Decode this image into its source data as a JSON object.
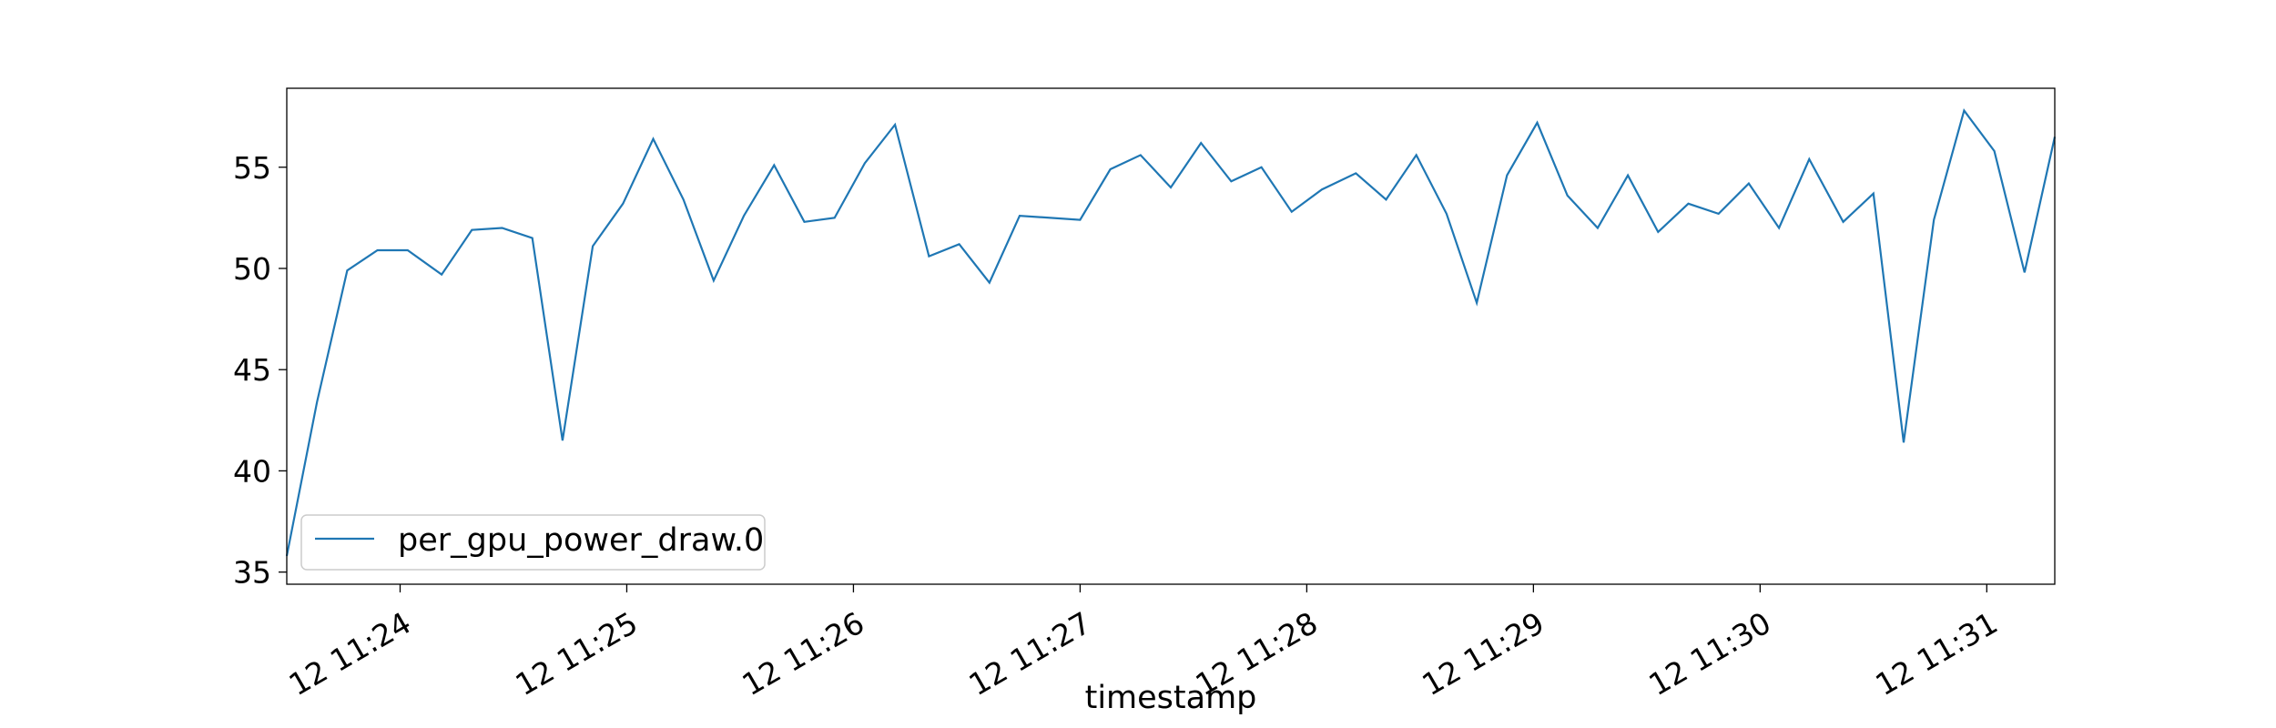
{
  "chart_data": {
    "type": "line",
    "title": "",
    "xlabel": "timestamp",
    "ylabel": "",
    "x_start": "12 11:23:30",
    "x_end": "12 11:31:18",
    "xticks": [
      "12 11:24",
      "12 11:25",
      "12 11:26",
      "12 11:27",
      "12 11:28",
      "12 11:29",
      "12 11:30",
      "12 11:31"
    ],
    "xtick_times": [
      "12 11:24:00",
      "12 11:25:00",
      "12 11:26:00",
      "12 11:27:00",
      "12 11:28:00",
      "12 11:29:00",
      "12 11:30:00",
      "12 11:31:00"
    ],
    "ylim": [
      34.4,
      58.9
    ],
    "yticks": [
      35,
      40,
      45,
      50,
      55
    ],
    "grid": false,
    "legend_position": "lower-left",
    "series": [
      {
        "name": "per_gpu_power_draw.0",
        "color": "#1f77b4",
        "points": [
          [
            "12 11:23:30",
            35.8
          ],
          [
            "12 11:23:38",
            43.4
          ],
          [
            "12 11:23:46",
            49.9
          ],
          [
            "12 11:23:54",
            50.9
          ],
          [
            "12 11:24:02",
            50.9
          ],
          [
            "12 11:24:11",
            49.7
          ],
          [
            "12 11:24:19",
            51.9
          ],
          [
            "12 11:24:27",
            52.0
          ],
          [
            "12 11:24:35",
            51.5
          ],
          [
            "12 11:24:43",
            41.5
          ],
          [
            "12 11:24:51",
            51.1
          ],
          [
            "12 11:24:59",
            53.2
          ],
          [
            "12 11:25:07",
            56.4
          ],
          [
            "12 11:25:15",
            53.4
          ],
          [
            "12 11:25:23",
            49.4
          ],
          [
            "12 11:25:31",
            52.6
          ],
          [
            "12 11:25:39",
            55.1
          ],
          [
            "12 11:25:47",
            52.3
          ],
          [
            "12 11:25:55",
            52.5
          ],
          [
            "12 11:26:03",
            55.2
          ],
          [
            "12 11:26:11",
            57.1
          ],
          [
            "12 11:26:20",
            50.6
          ],
          [
            "12 11:26:28",
            51.2
          ],
          [
            "12 11:26:36",
            49.3
          ],
          [
            "12 11:26:44",
            52.6
          ],
          [
            "12 11:27:00",
            52.4
          ],
          [
            "12 11:27:08",
            54.9
          ],
          [
            "12 11:27:16",
            55.6
          ],
          [
            "12 11:27:24",
            54.0
          ],
          [
            "12 11:27:32",
            56.2
          ],
          [
            "12 11:27:40",
            54.3
          ],
          [
            "12 11:27:48",
            55.0
          ],
          [
            "12 11:27:56",
            52.8
          ],
          [
            "12 11:28:04",
            53.9
          ],
          [
            "12 11:28:13",
            54.7
          ],
          [
            "12 11:28:21",
            53.4
          ],
          [
            "12 11:28:29",
            55.6
          ],
          [
            "12 11:28:37",
            52.7
          ],
          [
            "12 11:28:45",
            48.3
          ],
          [
            "12 11:28:53",
            54.6
          ],
          [
            "12 11:29:01",
            57.2
          ],
          [
            "12 11:29:09",
            53.6
          ],
          [
            "12 11:29:17",
            52.0
          ],
          [
            "12 11:29:25",
            54.6
          ],
          [
            "12 11:29:33",
            51.8
          ],
          [
            "12 11:29:41",
            53.2
          ],
          [
            "12 11:29:49",
            52.7
          ],
          [
            "12 11:29:57",
            54.2
          ],
          [
            "12 11:30:05",
            52.0
          ],
          [
            "12 11:30:13",
            55.4
          ],
          [
            "12 11:30:22",
            52.3
          ],
          [
            "12 11:30:30",
            53.7
          ],
          [
            "12 11:30:38",
            41.4
          ],
          [
            "12 11:30:46",
            52.4
          ],
          [
            "12 11:30:54",
            57.8
          ],
          [
            "12 11:31:02",
            55.8
          ],
          [
            "12 11:31:10",
            49.8
          ],
          [
            "12 11:31:18",
            56.5
          ]
        ]
      }
    ]
  }
}
